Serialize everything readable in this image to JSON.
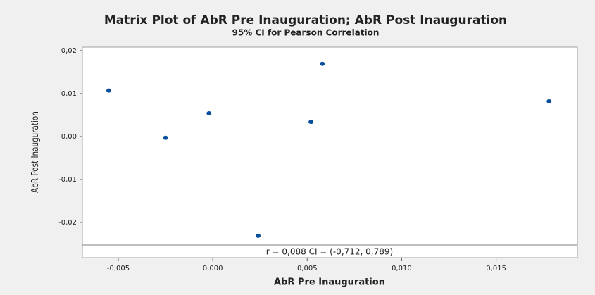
{
  "chart_data": {
    "type": "scatter",
    "title": "Matrix Plot of AbR Pre Inauguration; AbR Post Inauguration",
    "subtitle": "95% CI for Pearson Correlation",
    "x_label": "AbR Pre Inauguration",
    "y_label": "AbR Post Inauguration",
    "annotation": "r = 0,088  CI = (-0,712, 0,789)",
    "color": "#0a4f9c",
    "grid": false,
    "x": [
      -0.0055,
      -0.0025,
      -0.0002,
      0.0052,
      0.0058,
      0.0024,
      0.0178
    ],
    "values": [
      0.0107,
      -0.0003,
      0.0054,
      0.0034,
      0.0169,
      -0.0231,
      0.0082
    ],
    "xlim": [
      -0.0069,
      0.0193
    ],
    "ylim": [
      -0.0282,
      0.0208
    ],
    "xticks": [
      {
        "value": -0.005,
        "label": "-0,005"
      },
      {
        "value": 0,
        "label": "0,000"
      },
      {
        "value": 0.005,
        "label": "0,005"
      },
      {
        "value": 0.01,
        "label": "0,010"
      },
      {
        "value": 0.015,
        "label": "0,015"
      }
    ],
    "yticks": [
      {
        "value": -0.02,
        "label": "-0,02"
      },
      {
        "value": -0.01,
        "label": "-0,01"
      },
      {
        "value": 0,
        "label": "0,00"
      },
      {
        "value": 0.01,
        "label": "0,01"
      },
      {
        "value": 0.02,
        "label": "0,02"
      }
    ]
  }
}
